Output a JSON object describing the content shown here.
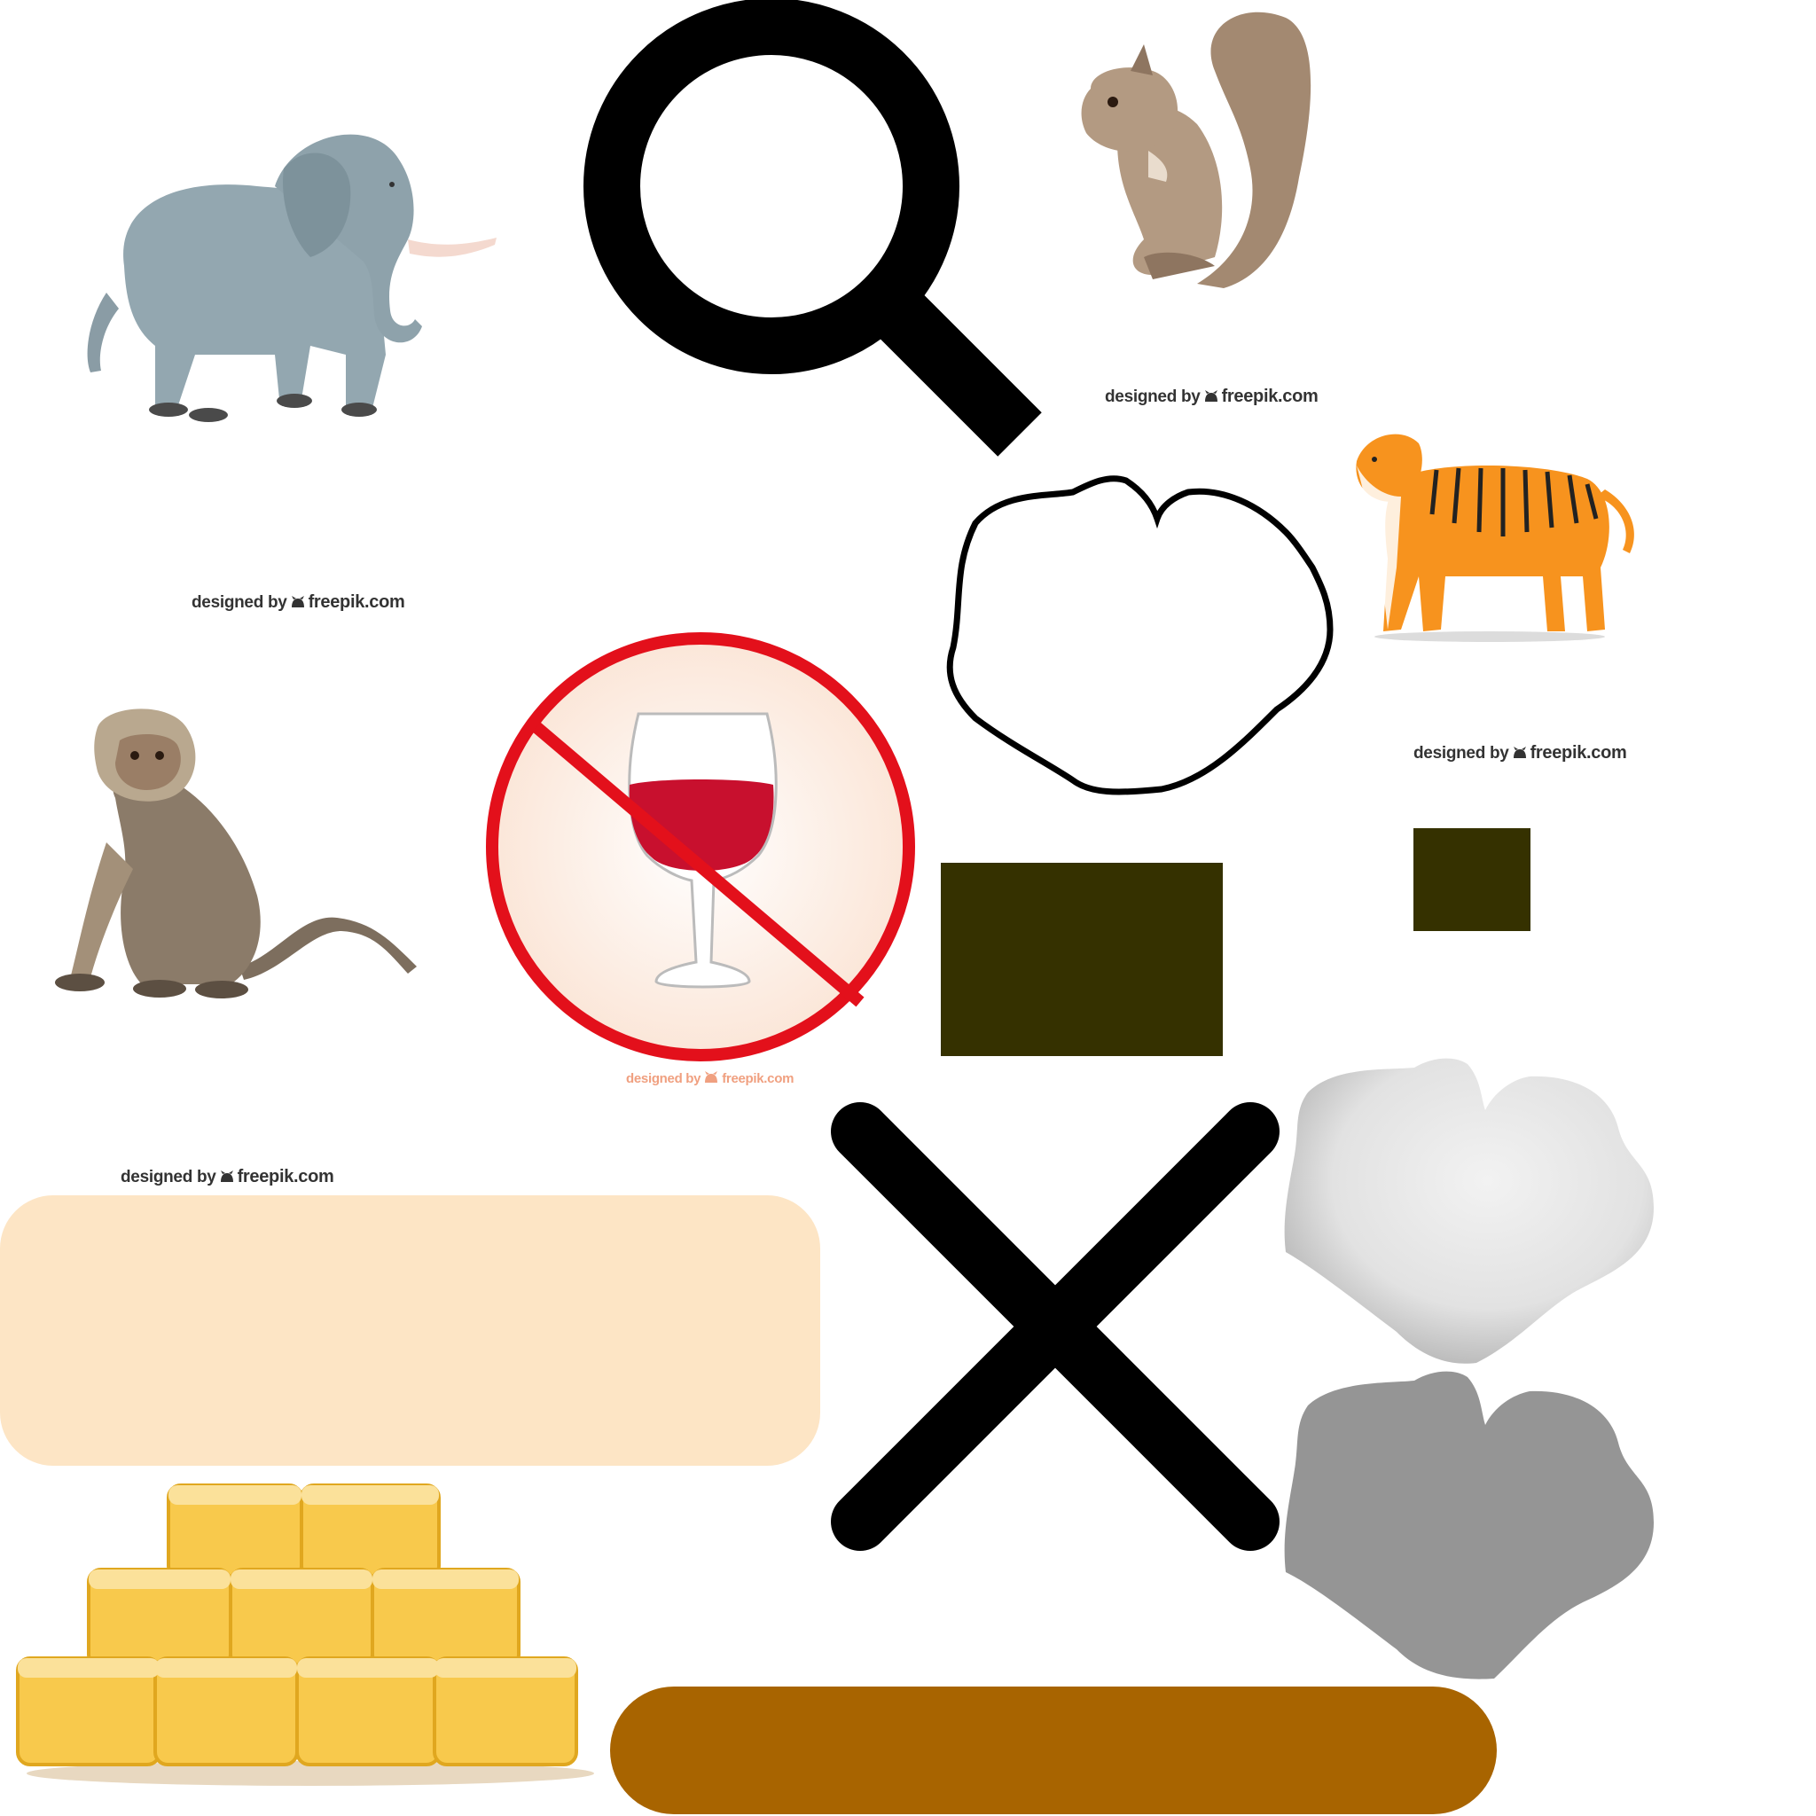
{
  "assets": {
    "elephant": {
      "icon": "elephant-illustration"
    },
    "squirrel": {
      "icon": "squirrel-illustration"
    },
    "tiger": {
      "icon": "tiger-illustration"
    },
    "monkey": {
      "icon": "monkey-illustration"
    },
    "no_alcohol": {
      "icon": "no-alcohol-sign",
      "ring_color": "#e3101b",
      "wine_color": "#c8102e"
    },
    "magnifier": {
      "icon": "search-icon",
      "color": "#000000"
    },
    "close": {
      "icon": "close-icon",
      "color": "#000000"
    },
    "hay": {
      "icon": "hay-bales-illustration",
      "color": "#f5c850"
    },
    "rock_outline": {
      "icon": "rock-outline-shape"
    },
    "rock_light": {
      "icon": "rock-shape-light",
      "color": "#dcdcdc"
    },
    "rock_dark": {
      "icon": "rock-shape-dark",
      "color": "#959595"
    },
    "panel_large": {
      "color": "#353100"
    },
    "panel_small": {
      "color": "#353100"
    },
    "banner_cream": {
      "color": "#fde5c5"
    },
    "bar_brown": {
      "color": "#a86400"
    }
  },
  "credits": {
    "elephant": {
      "prefix": "designed by",
      "site": "freepik.com"
    },
    "squirrel": {
      "prefix": "designed by",
      "site": "freepik.com"
    },
    "tiger": {
      "prefix": "designed by",
      "site": "freepik.com"
    },
    "monkey": {
      "prefix": "designed by",
      "site": "freepik.com"
    },
    "no_alcohol": {
      "prefix": "designed by",
      "site": "freepik.com"
    }
  }
}
